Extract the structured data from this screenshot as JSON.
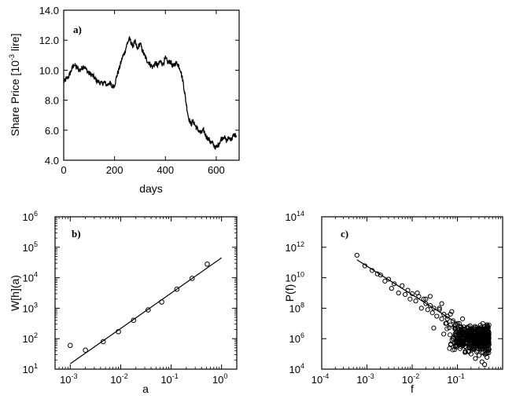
{
  "chart_data": [
    {
      "type": "line",
      "label": "a)",
      "xlabel": "days",
      "ylabel": "Share Price [10",
      "ylabel_exp": "-3",
      "ylabel_unit": "lire]",
      "xlim": [
        0,
        690
      ],
      "ylim": [
        4.0,
        14.0
      ],
      "xticks": [
        "0",
        "200",
        "400",
        "600"
      ],
      "xtick_values": [
        0,
        200,
        400,
        600
      ],
      "yticks": [
        "4.0",
        "6.0",
        "8.0",
        "10.0",
        "12.0",
        "14.0"
      ],
      "ytick_values": [
        4,
        6,
        8,
        10,
        12,
        14
      ],
      "series": [
        {
          "x": [
            0,
            10,
            20,
            30,
            40,
            50,
            60,
            70,
            80,
            90,
            100,
            110,
            120,
            130,
            140,
            150,
            160,
            170,
            180,
            190,
            200,
            210,
            220,
            230,
            240,
            250,
            260,
            270,
            280,
            290,
            300,
            310,
            320,
            330,
            340,
            350,
            360,
            370,
            380,
            390,
            400,
            410,
            420,
            430,
            440,
            450,
            460,
            470,
            480,
            490,
            500,
            510,
            520,
            530,
            540,
            550,
            560,
            570,
            580,
            590,
            600,
            610,
            620,
            630,
            640,
            650,
            660,
            670,
            680
          ],
          "y": [
            9.2,
            9.4,
            9.6,
            10.0,
            10.4,
            10.2,
            10.0,
            10.1,
            10.3,
            10.0,
            9.8,
            9.7,
            9.5,
            9.3,
            9.2,
            9.1,
            9.2,
            9.0,
            9.2,
            8.9,
            9.0,
            9.7,
            10.2,
            10.8,
            11.2,
            11.8,
            12.1,
            11.6,
            11.9,
            11.4,
            11.8,
            11.3,
            10.9,
            10.6,
            10.4,
            10.2,
            10.5,
            10.3,
            10.6,
            10.4,
            10.8,
            10.5,
            10.6,
            10.2,
            10.5,
            10.4,
            10.0,
            9.2,
            8.0,
            6.9,
            6.4,
            6.6,
            6.2,
            6.0,
            5.8,
            6.0,
            5.6,
            5.4,
            5.2,
            5.0,
            4.8,
            5.1,
            5.4,
            5.6,
            5.3,
            5.5,
            5.4,
            5.7,
            5.6
          ]
        }
      ]
    },
    {
      "type": "scatter",
      "label": "b)",
      "xlabel": "a",
      "ylabel": "W[h](a)",
      "xscale": "log",
      "yscale": "log",
      "xlim": [
        0.0005,
        2
      ],
      "ylim": [
        10,
        1000000
      ],
      "xticks": [
        {
          "base": "10",
          "exp": "-3"
        },
        {
          "base": "10",
          "exp": "-2"
        },
        {
          "base": "10",
          "exp": "-1"
        },
        {
          "base": "10",
          "exp": "0"
        }
      ],
      "xtick_values": [
        0.001,
        0.01,
        0.1,
        1
      ],
      "yticks": [
        {
          "base": "10",
          "exp": "1"
        },
        {
          "base": "10",
          "exp": "2"
        },
        {
          "base": "10",
          "exp": "3"
        },
        {
          "base": "10",
          "exp": "4"
        },
        {
          "base": "10",
          "exp": "5"
        },
        {
          "base": "10",
          "exp": "6"
        }
      ],
      "ytick_values": [
        10,
        100,
        1000,
        10000,
        100000,
        1000000
      ],
      "points": {
        "x": [
          0.001,
          0.002,
          0.0045,
          0.009,
          0.018,
          0.035,
          0.065,
          0.13,
          0.26,
          0.52
        ],
        "y": [
          60,
          42,
          80,
          170,
          400,
          880,
          1600,
          4200,
          9500,
          28000
        ]
      },
      "fit": {
        "x": [
          0.001,
          1.0
        ],
        "y": [
          15,
          45000
        ]
      }
    },
    {
      "type": "scatter",
      "label": "c)",
      "xlabel": "f",
      "ylabel": "P(f)",
      "xscale": "log",
      "yscale": "log",
      "xlim": [
        0.0001,
        1.0
      ],
      "ylim": [
        10000,
        100000000000000
      ],
      "xticks": [
        {
          "base": "10",
          "exp": "-4"
        },
        {
          "base": "10",
          "exp": "-3"
        },
        {
          "base": "10",
          "exp": "-2"
        },
        {
          "base": "10",
          "exp": "-1"
        }
      ],
      "xtick_values": [
        0.0001,
        0.001,
        0.01,
        0.1
      ],
      "yticks": [
        {
          "base": "10",
          "exp": "4"
        },
        {
          "base": "10",
          "exp": "6"
        },
        {
          "base": "10",
          "exp": "8"
        },
        {
          "base": "10",
          "exp": "10"
        },
        {
          "base": "10",
          "exp": "12"
        },
        {
          "base": "10",
          "exp": "14"
        }
      ],
      "ytick_values": [
        10000,
        1000000,
        100000000,
        10000000000,
        1000000000000,
        100000000000000
      ],
      "points": {
        "x": [
          0.0006,
          0.0009,
          0.0013,
          0.0017,
          0.002,
          0.0025,
          0.003,
          0.0035,
          0.004,
          0.005,
          0.006,
          0.007,
          0.008,
          0.009,
          0.01,
          0.012,
          0.014,
          0.016,
          0.018,
          0.02,
          0.022,
          0.025,
          0.028,
          0.03,
          0.035,
          0.04,
          0.045,
          0.05,
          0.055,
          0.06,
          0.07,
          0.08,
          0.09,
          0.1,
          0.11,
          0.12,
          0.13,
          0.14,
          0.15,
          0.16,
          0.18,
          0.2,
          0.22,
          0.24,
          0.26,
          0.28,
          0.3,
          0.32,
          0.35,
          0.38,
          0.4,
          0.42,
          0.45,
          0.48,
          0.5,
          0.03,
          0.05,
          0.08,
          0.1,
          0.12,
          0.15,
          0.2,
          0.25,
          0.3,
          0.35,
          0.4,
          0.45,
          0.5,
          0.06,
          0.09,
          0.14,
          0.18,
          0.22,
          0.28,
          0.33,
          0.42,
          0.47,
          0.013,
          0.02,
          0.04,
          0.07,
          0.11,
          0.17,
          0.23,
          0.36,
          0.44,
          0.49,
          0.025,
          0.045,
          0.075,
          0.13,
          0.19,
          0.27,
          0.31,
          0.39,
          0.46
        ],
        "y": [
          300000000000,
          60000000000,
          30000000000,
          18000000000,
          15000000000,
          6000000000,
          8000000000,
          2000000000,
          4000000000,
          1000000000,
          3000000000,
          800000000,
          1500000000,
          400000000,
          900000000,
          300000000,
          600000000,
          100000000,
          400000000,
          200000000,
          80000000,
          150000000,
          50000000,
          100000000,
          30000000,
          80000000,
          20000000,
          40000000,
          10000000,
          30000000,
          8000000,
          15000000,
          5000000,
          10000000,
          3000000,
          6000000,
          2000000,
          4000000,
          1500000,
          3000000,
          1000000,
          2000000,
          800000,
          1500000,
          600000,
          1200000,
          500000,
          1000000,
          400000,
          800000,
          300000,
          600000,
          200000,
          500000,
          400000,
          5000000,
          2000000,
          1000000,
          500000,
          300000,
          150000,
          100000,
          50000,
          80000,
          30000,
          20000,
          60000,
          200000,
          20000000,
          8000000,
          3000000,
          1200000,
          700000,
          300000,
          2000000,
          100000,
          1500000,
          1000000000,
          400000000,
          100000000,
          40000000,
          10000000,
          5000000,
          2500000,
          800000,
          400000,
          900000,
          600000000,
          200000000,
          60000000,
          20000000,
          7000000,
          3500000,
          1800000,
          700000,
          300000
        ],
        "bulk": {
          "x_min": 0.05,
          "x_max": 0.5,
          "y_center": 1000000,
          "spread_decades": 0.8
        }
      },
      "fit": {
        "x": [
          0.0006,
          0.5
        ],
        "y": [
          150000000000,
          500000
        ]
      }
    }
  ]
}
